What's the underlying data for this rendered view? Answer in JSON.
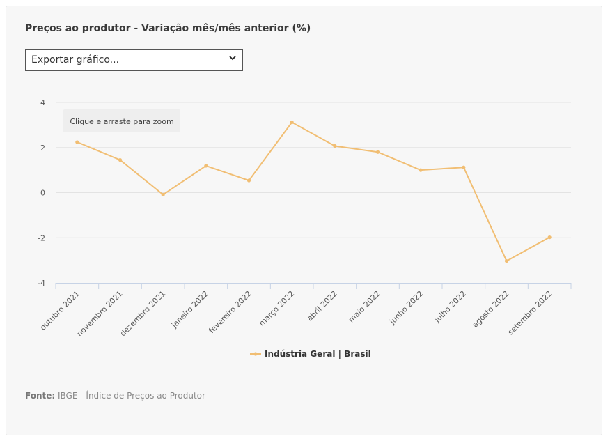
{
  "title": "Preços ao produtor - Variação mês/mês anterior (%)",
  "export": {
    "selected": "Exportar gráfico...",
    "icon": "chevron-down-icon"
  },
  "zoom_hint": "Clique e arraste para zoom",
  "source": {
    "label": "Fonte:",
    "text": "IBGE - Índice de Preços ao Produtor"
  },
  "chart_data": {
    "type": "line",
    "title": "Preços ao produtor - Variação mês/mês anterior (%)",
    "xlabel": "",
    "ylabel": "",
    "ylim": [
      -4,
      4
    ],
    "yticks": [
      4,
      2,
      0,
      -2,
      -4
    ],
    "grid": true,
    "legend_position": "bottom",
    "categories": [
      "outubro 2021",
      "novembro 2021",
      "dezembro 2021",
      "janeiro 2022",
      "fevereiro 2022",
      "março 2022",
      "abril 2022",
      "maio 2022",
      "junho 2022",
      "julho 2022",
      "agosto 2022",
      "setembro 2022"
    ],
    "series": [
      {
        "name": "Indústria Geral | Brasil",
        "color": "#f1be73",
        "values": [
          2.24,
          1.45,
          -0.09,
          1.19,
          0.54,
          3.12,
          2.07,
          1.8,
          1.0,
          1.12,
          -3.03,
          -1.98
        ]
      }
    ]
  }
}
